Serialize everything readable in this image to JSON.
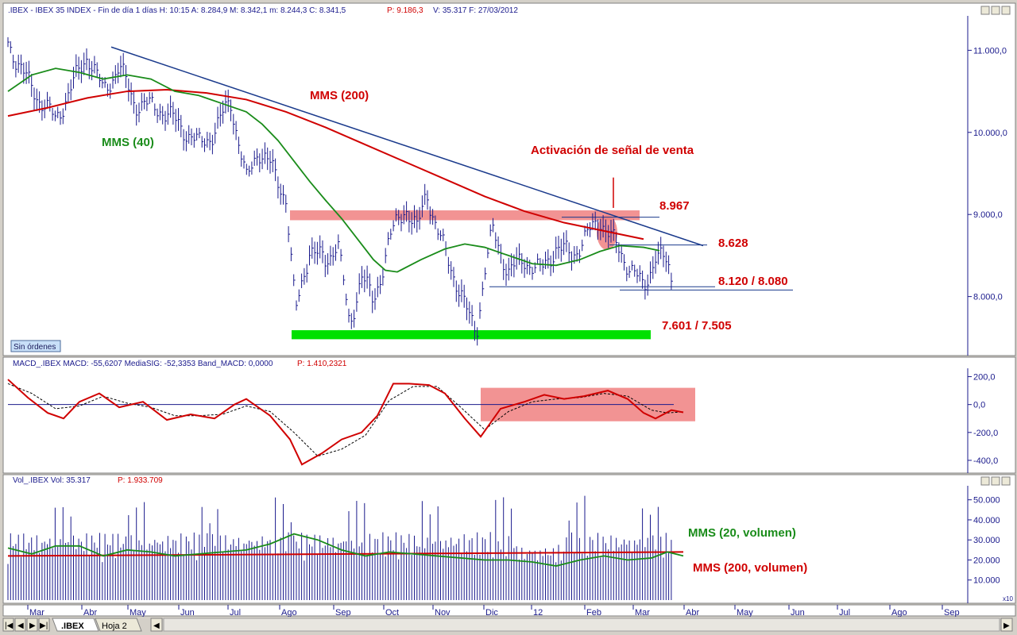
{
  "price_panel": {
    "header": ".IBEX - IBEX 35 INDEX - Fin de día 1 días  H: 10:15  A: 8.284,9  M: 8.342,1  m: 8.244,3  C: 8.341,5",
    "header_p": "P: 9.186,3",
    "header_tail": "V: 35.317  F: 27/03/2012",
    "sin_ordenes": "Sin órdenes",
    "labels": {
      "mms200": "MMS (200)",
      "mms40": "MMS (40)",
      "activacion": "Activación de señal de venta",
      "l8967": "8.967",
      "l8628": "8.628",
      "l8120": "8.120 / 8.080",
      "l7601": "7.601 / 7.505"
    }
  },
  "macd_panel": {
    "header": "MACD_.IBEX  MACD: -55,6207  MediaSIG: -52,3353  Band_MACD: 0,0000",
    "header_p": "P: 1.410,2321"
  },
  "vol_panel": {
    "header": "Vol_.IBEX  Vol: 35.317",
    "header_p": "P: 1.933.709",
    "labels": {
      "mms20v": "MMS (20, volumen)",
      "mms200v": "MMS (200, volumen)"
    },
    "x10": "x10"
  },
  "x_axis": {
    "months": [
      "Mar",
      "Abr",
      "May",
      "Jun",
      "Jul",
      "Ago",
      "Sep",
      "Oct",
      "Nov",
      "Dic",
      "12",
      "Feb",
      "Mar",
      "Abr",
      "May",
      "Jun",
      "Jul",
      "Ago",
      "Sep"
    ]
  },
  "tabs": {
    "ibex": ".IBEX",
    "hoja2": "Hoja 2"
  },
  "colors": {
    "price_bars": "#1a1a8c",
    "mms200": "#d00000",
    "mms40": "#1a8c1a",
    "trend": "#1a3a8c",
    "highlight": "#f08080",
    "support": "#00e000",
    "macd": "#d00000"
  },
  "chart_data": [
    {
      "type": "line",
      "title": "",
      "ylim": [
        7300,
        11400
      ],
      "y_ticks": [
        "11.000,0",
        "10.000,0",
        "9.000,0",
        "8.000,0"
      ],
      "y_tick_values": [
        11000,
        10000,
        9000,
        8000
      ],
      "series": [
        {
          "name": "MMS (200)",
          "points": [
            [
              0,
              10200
            ],
            [
              50,
              10300
            ],
            [
              100,
              10420
            ],
            [
              150,
              10500
            ],
            [
              200,
              10520
            ],
            [
              250,
              10480
            ],
            [
              300,
              10400
            ],
            [
              350,
              10250
            ],
            [
              400,
              10060
            ],
            [
              450,
              9850
            ],
            [
              500,
              9640
            ],
            [
              550,
              9430
            ],
            [
              600,
              9220
            ],
            [
              650,
              9040
            ],
            [
              700,
              8900
            ],
            [
              750,
              8800
            ],
            [
              800,
              8700
            ]
          ]
        },
        {
          "name": "MMS (40)",
          "points": [
            [
              0,
              10500
            ],
            [
              30,
              10700
            ],
            [
              60,
              10780
            ],
            [
              90,
              10730
            ],
            [
              120,
              10650
            ],
            [
              150,
              10700
            ],
            [
              180,
              10650
            ],
            [
              210,
              10500
            ],
            [
              240,
              10450
            ],
            [
              270,
              10350
            ],
            [
              300,
              10250
            ],
            [
              320,
              10100
            ],
            [
              340,
              9900
            ],
            [
              360,
              9650
            ],
            [
              380,
              9400
            ],
            [
              400,
              9170
            ],
            [
              420,
              8950
            ],
            [
              440,
              8700
            ],
            [
              460,
              8450
            ],
            [
              475,
              8320
            ],
            [
              490,
              8300
            ],
            [
              520,
              8450
            ],
            [
              550,
              8580
            ],
            [
              575,
              8640
            ],
            [
              600,
              8600
            ],
            [
              630,
              8500
            ],
            [
              660,
              8400
            ],
            [
              690,
              8380
            ],
            [
              720,
              8450
            ],
            [
              745,
              8550
            ],
            [
              770,
              8620
            ],
            [
              800,
              8600
            ],
            [
              820,
              8560
            ]
          ]
        },
        {
          "name": "Tendencia bajista",
          "points": [
            [
              130,
              11040
            ],
            [
              875,
              8620
            ]
          ]
        }
      ],
      "levels": [
        {
          "label": "8.967",
          "value": 8967
        },
        {
          "label": "8.628",
          "value": 8628
        },
        {
          "label": "8.120 / 8.080",
          "value": 8120
        },
        {
          "label": "7.601 / 7.505",
          "value": 7505
        }
      ]
    },
    {
      "type": "line",
      "title": "",
      "ylim": [
        -480,
        260
      ],
      "y_ticks": [
        "200,0",
        "0,0",
        "-200,0",
        "-400,0"
      ],
      "y_tick_values": [
        200,
        0,
        -200,
        -400
      ],
      "series": [
        {
          "name": "MACD",
          "points": [
            [
              0,
              180
            ],
            [
              25,
              50
            ],
            [
              50,
              -60
            ],
            [
              70,
              -100
            ],
            [
              90,
              20
            ],
            [
              115,
              80
            ],
            [
              140,
              -20
            ],
            [
              170,
              20
            ],
            [
              200,
              -110
            ],
            [
              230,
              -70
            ],
            [
              260,
              -100
            ],
            [
              285,
              0
            ],
            [
              300,
              40
            ],
            [
              330,
              -80
            ],
            [
              355,
              -250
            ],
            [
              370,
              -430
            ],
            [
              395,
              -350
            ],
            [
              420,
              -250
            ],
            [
              445,
              -200
            ],
            [
              465,
              -80
            ],
            [
              485,
              150
            ],
            [
              505,
              150
            ],
            [
              530,
              140
            ],
            [
              550,
              80
            ],
            [
              575,
              -100
            ],
            [
              595,
              -230
            ],
            [
              620,
              -30
            ],
            [
              650,
              20
            ],
            [
              675,
              70
            ],
            [
              700,
              40
            ],
            [
              725,
              60
            ],
            [
              755,
              100
            ],
            [
              780,
              40
            ],
            [
              800,
              -60
            ],
            [
              815,
              -100
            ],
            [
              835,
              -40
            ],
            [
              850,
              -56
            ]
          ]
        },
        {
          "name": "MediaSIG",
          "points": [
            [
              0,
              150
            ],
            [
              30,
              80
            ],
            [
              60,
              -30
            ],
            [
              90,
              -10
            ],
            [
              120,
              60
            ],
            [
              150,
              10
            ],
            [
              180,
              -20
            ],
            [
              210,
              -80
            ],
            [
              240,
              -80
            ],
            [
              270,
              -70
            ],
            [
              300,
              -10
            ],
            [
              330,
              -50
            ],
            [
              360,
              -200
            ],
            [
              390,
              -370
            ],
            [
              420,
              -320
            ],
            [
              450,
              -220
            ],
            [
              480,
              30
            ],
            [
              510,
              130
            ],
            [
              540,
              130
            ],
            [
              570,
              -20
            ],
            [
              600,
              -180
            ],
            [
              630,
              -50
            ],
            [
              660,
              20
            ],
            [
              690,
              40
            ],
            [
              720,
              50
            ],
            [
              750,
              80
            ],
            [
              780,
              60
            ],
            [
              810,
              -40
            ],
            [
              830,
              -60
            ],
            [
              850,
              -52
            ]
          ]
        }
      ]
    },
    {
      "type": "bar",
      "title": "",
      "ylim": [
        0,
        57000
      ],
      "y_ticks": [
        "50.000",
        "40.000",
        "30.000",
        "20.000",
        "10.000"
      ],
      "y_tick_values": [
        50000,
        40000,
        30000,
        20000,
        10000
      ],
      "series": [
        {
          "name": "MMS (20, volumen)",
          "points": [
            [
              0,
              26000
            ],
            [
              30,
              23000
            ],
            [
              60,
              27000
            ],
            [
              90,
              27000
            ],
            [
              120,
              22000
            ],
            [
              150,
              25000
            ],
            [
              180,
              24000
            ],
            [
              210,
              22000
            ],
            [
              240,
              23000
            ],
            [
              270,
              24000
            ],
            [
              300,
              25000
            ],
            [
              330,
              28000
            ],
            [
              360,
              33000
            ],
            [
              390,
              30000
            ],
            [
              420,
              25000
            ],
            [
              450,
              22000
            ],
            [
              480,
              24000
            ],
            [
              510,
              23000
            ],
            [
              540,
              22000
            ],
            [
              570,
              21000
            ],
            [
              600,
              20000
            ],
            [
              630,
              20000
            ],
            [
              660,
              19000
            ],
            [
              690,
              17000
            ],
            [
              720,
              20000
            ],
            [
              750,
              22000
            ],
            [
              780,
              20000
            ],
            [
              810,
              21000
            ],
            [
              830,
              24000
            ],
            [
              850,
              22000
            ]
          ]
        },
        {
          "name": "MMS (200, volumen)",
          "points": [
            [
              0,
              22000
            ],
            [
              850,
              24000
            ]
          ]
        }
      ]
    }
  ]
}
